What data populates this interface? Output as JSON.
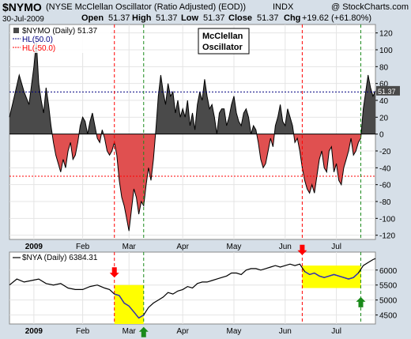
{
  "header": {
    "symbol": "$NYMO",
    "description": "(NYSE McClellan Oscillator (Ratio Adjusted) (EOD))",
    "exchange": "INDX",
    "copyright": "@ StockCharts.com",
    "date": "30-Jul-2009",
    "open_label": "Open",
    "open": "51.37",
    "high_label": "High",
    "high": "51.37",
    "low_label": "Low",
    "low": "51.37",
    "close_label": "Close",
    "close": "51.37",
    "chg_label": "Chg",
    "chg": "+19.62 (+61.80%)"
  },
  "annotation": {
    "line1": "McClellan",
    "line2": "Oscillator"
  },
  "colors": {
    "positive_fill": "#4a4a4a",
    "negative_fill": "#e05050",
    "line": "#000000",
    "highlight": "#ffff00",
    "ref_line_up": "#000080",
    "ref_line_down": "#ff0000",
    "arrow_red": "#ff0000",
    "arrow_green": "#1a8a1a",
    "arrow_blue": "#3366ff",
    "sub_line": "#3030c0"
  },
  "chart_data": [
    {
      "type": "area",
      "title": "$NYMO (Daily)",
      "last_label": "51.37",
      "legend": [
        {
          "label": "$NYMO (Daily) 51.37",
          "color": "#000000"
        },
        {
          "label": "HL(50.0)",
          "color": "#000080"
        },
        {
          "label": "HL(-50.0)",
          "color": "#ff0000"
        }
      ],
      "ylim": [
        -125,
        130
      ],
      "yticks": [
        120,
        100,
        80,
        60,
        40,
        20,
        0,
        -20,
        -40,
        -60,
        -80,
        -100,
        -120
      ],
      "hlines": [
        50,
        -50
      ],
      "x_labels": [
        "2009",
        "Feb",
        "Mar",
        "Apr",
        "May",
        "Jun",
        "Jul"
      ],
      "x_label_pos": [
        0,
        20,
        39,
        61,
        82,
        103,
        124
      ],
      "xlim": [
        -10,
        140
      ],
      "signal_lines": [
        {
          "x": 33,
          "color": "#ff0000"
        },
        {
          "x": 45,
          "color": "#1a8a1a"
        },
        {
          "x": 110,
          "color": "#ff0000"
        },
        {
          "x": 134,
          "color": "#1a8a1a"
        }
      ],
      "points": [
        [
          -10,
          20
        ],
        [
          -8,
          45
        ],
        [
          -6,
          70
        ],
        [
          -4,
          50
        ],
        [
          -2,
          35
        ],
        [
          0,
          80
        ],
        [
          1,
          110
        ],
        [
          2,
          60
        ],
        [
          3,
          40
        ],
        [
          4,
          25
        ],
        [
          5,
          55
        ],
        [
          6,
          35
        ],
        [
          7,
          10
        ],
        [
          8,
          -10
        ],
        [
          9,
          -25
        ],
        [
          10,
          -35
        ],
        [
          11,
          -45
        ],
        [
          12,
          -30
        ],
        [
          13,
          -40
        ],
        [
          14,
          -20
        ],
        [
          15,
          -10
        ],
        [
          16,
          -30
        ],
        [
          17,
          -25
        ],
        [
          18,
          -10
        ],
        [
          19,
          10
        ],
        [
          20,
          20
        ],
        [
          21,
          15
        ],
        [
          22,
          0
        ],
        [
          23,
          15
        ],
        [
          24,
          25
        ],
        [
          25,
          10
        ],
        [
          26,
          -5
        ],
        [
          27,
          -10
        ],
        [
          28,
          5
        ],
        [
          29,
          -5
        ],
        [
          30,
          -20
        ],
        [
          31,
          -25
        ],
        [
          32,
          -20
        ],
        [
          33,
          -10
        ],
        [
          34,
          -25
        ],
        [
          35,
          -55
        ],
        [
          36,
          -75
        ],
        [
          37,
          -85
        ],
        [
          38,
          -100
        ],
        [
          39,
          -115
        ],
        [
          40,
          -90
        ],
        [
          41,
          -65
        ],
        [
          42,
          -75
        ],
        [
          43,
          -95
        ],
        [
          44,
          -80
        ],
        [
          45,
          -85
        ],
        [
          46,
          -60
        ],
        [
          47,
          -40
        ],
        [
          48,
          -55
        ],
        [
          49,
          -30
        ],
        [
          50,
          5
        ],
        [
          51,
          45
        ],
        [
          52,
          70
        ],
        [
          53,
          50
        ],
        [
          54,
          35
        ],
        [
          55,
          60
        ],
        [
          56,
          45
        ],
        [
          57,
          50
        ],
        [
          58,
          25
        ],
        [
          59,
          40
        ],
        [
          60,
          20
        ],
        [
          61,
          30
        ],
        [
          62,
          20
        ],
        [
          63,
          40
        ],
        [
          64,
          10
        ],
        [
          65,
          25
        ],
        [
          66,
          5
        ],
        [
          67,
          35
        ],
        [
          68,
          50
        ],
        [
          69,
          40
        ],
        [
          70,
          65
        ],
        [
          71,
          45
        ],
        [
          72,
          30
        ],
        [
          73,
          35
        ],
        [
          74,
          20
        ],
        [
          75,
          0
        ],
        [
          76,
          25
        ],
        [
          77,
          30
        ],
        [
          78,
          30
        ],
        [
          79,
          10
        ],
        [
          80,
          20
        ],
        [
          81,
          35
        ],
        [
          82,
          45
        ],
        [
          83,
          25
        ],
        [
          84,
          15
        ],
        [
          85,
          10
        ],
        [
          86,
          25
        ],
        [
          87,
          30
        ],
        [
          88,
          20
        ],
        [
          89,
          0
        ],
        [
          90,
          10
        ],
        [
          91,
          5
        ],
        [
          92,
          -10
        ],
        [
          93,
          -30
        ],
        [
          94,
          -40
        ],
        [
          95,
          -35
        ],
        [
          96,
          -20
        ],
        [
          97,
          -5
        ],
        [
          98,
          -15
        ],
        [
          99,
          10
        ],
        [
          100,
          20
        ],
        [
          101,
          35
        ],
        [
          102,
          15
        ],
        [
          103,
          10
        ],
        [
          104,
          30
        ],
        [
          105,
          20
        ],
        [
          106,
          10
        ],
        [
          107,
          -10
        ],
        [
          108,
          -5
        ],
        [
          109,
          -20
        ],
        [
          110,
          -40
        ],
        [
          111,
          -55
        ],
        [
          112,
          -65
        ],
        [
          113,
          -70
        ],
        [
          114,
          -60
        ],
        [
          115,
          -70
        ],
        [
          116,
          -50
        ],
        [
          117,
          -30
        ],
        [
          118,
          -20
        ],
        [
          119,
          -40
        ],
        [
          120,
          -45
        ],
        [
          121,
          -20
        ],
        [
          122,
          -15
        ],
        [
          123,
          -45
        ],
        [
          124,
          -35
        ],
        [
          125,
          -55
        ],
        [
          126,
          -60
        ],
        [
          127,
          -40
        ],
        [
          128,
          -30
        ],
        [
          129,
          -20
        ],
        [
          130,
          -5
        ],
        [
          131,
          -25
        ],
        [
          132,
          -20
        ],
        [
          133,
          -10
        ],
        [
          134,
          -5
        ],
        [
          135,
          30
        ],
        [
          136,
          50
        ],
        [
          137,
          70
        ],
        [
          138,
          55
        ],
        [
          139,
          45
        ],
        [
          140,
          51.37
        ]
      ]
    },
    {
      "type": "line",
      "title": "$NYA (Daily)",
      "last_label": "6384.31",
      "legend": [
        {
          "label": "$NYA (Daily) 6384.31",
          "color": "#000000"
        }
      ],
      "ylim": [
        4200,
        6600
      ],
      "yticks": [
        6000,
        5500,
        5000,
        4500
      ],
      "x_labels": [
        "2009",
        "Feb",
        "Mar",
        "Apr",
        "May",
        "Jun",
        "Jul"
      ],
      "x_label_pos": [
        0,
        20,
        39,
        61,
        82,
        103,
        124
      ],
      "xlim": [
        -10,
        140
      ],
      "highlight_boxes": [
        {
          "x0": 33,
          "x1": 45,
          "y0": 4200,
          "y1": 5500
        },
        {
          "x0": 110,
          "x1": 134,
          "y0": 5400,
          "y1": 6150
        }
      ],
      "arrows": [
        {
          "x": 33,
          "y": 5750,
          "dir": "down",
          "color": "#ff0000"
        },
        {
          "x": 45,
          "y": 4100,
          "dir": "up",
          "color": "#1a8a1a"
        },
        {
          "x": 110,
          "y": 6500,
          "dir": "down",
          "color": "#ff0000"
        },
        {
          "x": 134,
          "y": 5100,
          "dir": "up",
          "color": "#1a8a1a"
        }
      ],
      "points": [
        [
          -10,
          5500
        ],
        [
          -7,
          5700
        ],
        [
          -4,
          5600
        ],
        [
          -1,
          5650
        ],
        [
          2,
          5700
        ],
        [
          5,
          5550
        ],
        [
          8,
          5500
        ],
        [
          11,
          5550
        ],
        [
          14,
          5400
        ],
        [
          17,
          5350
        ],
        [
          20,
          5350
        ],
        [
          23,
          5450
        ],
        [
          26,
          5500
        ],
        [
          29,
          5400
        ],
        [
          31,
          5350
        ],
        [
          33,
          5200
        ],
        [
          35,
          5150
        ],
        [
          37,
          4900
        ],
        [
          39,
          4800
        ],
        [
          41,
          4600
        ],
        [
          43,
          4400
        ],
        [
          45,
          4500
        ],
        [
          47,
          4750
        ],
        [
          49,
          4900
        ],
        [
          51,
          5000
        ],
        [
          53,
          5100
        ],
        [
          55,
          5250
        ],
        [
          57,
          5200
        ],
        [
          59,
          5300
        ],
        [
          61,
          5350
        ],
        [
          63,
          5450
        ],
        [
          65,
          5400
        ],
        [
          67,
          5550
        ],
        [
          69,
          5600
        ],
        [
          71,
          5600
        ],
        [
          73,
          5650
        ],
        [
          75,
          5700
        ],
        [
          77,
          5750
        ],
        [
          79,
          5800
        ],
        [
          81,
          5900
        ],
        [
          83,
          5900
        ],
        [
          85,
          5850
        ],
        [
          87,
          6000
        ],
        [
          89,
          6050
        ],
        [
          91,
          6050
        ],
        [
          93,
          6000
        ],
        [
          95,
          6050
        ],
        [
          97,
          6100
        ],
        [
          99,
          6150
        ],
        [
          101,
          6100
        ],
        [
          103,
          6150
        ],
        [
          105,
          6200
        ],
        [
          107,
          6150
        ],
        [
          109,
          6200
        ],
        [
          111,
          5950
        ],
        [
          113,
          5850
        ],
        [
          115,
          5900
        ],
        [
          117,
          5800
        ],
        [
          119,
          5750
        ],
        [
          121,
          5800
        ],
        [
          123,
          5850
        ],
        [
          125,
          5800
        ],
        [
          127,
          5750
        ],
        [
          129,
          5700
        ],
        [
          131,
          5750
        ],
        [
          133,
          5900
        ],
        [
          135,
          6150
        ],
        [
          137,
          6250
        ],
        [
          139,
          6350
        ],
        [
          140,
          6384.31
        ]
      ]
    }
  ]
}
